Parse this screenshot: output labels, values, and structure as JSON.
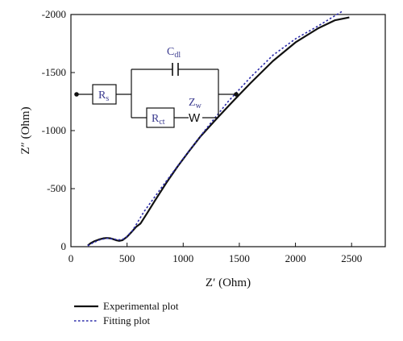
{
  "chart_data": {
    "type": "line",
    "xlabel": "Z′ (Ohm)",
    "ylabel": "Z″ (Ohm)",
    "xlim": [
      0,
      2800
    ],
    "ylim": [
      0,
      2000
    ],
    "x_ticks": [
      0,
      500,
      1000,
      1500,
      2000,
      2500
    ],
    "y_ticks": [
      0,
      500,
      1000,
      1500,
      2000
    ],
    "x_tick_labels": [
      "0",
      "500",
      "1000",
      "1500",
      "2000",
      "2500"
    ],
    "y_tick_labels": [
      "0",
      "-500",
      "-1000",
      "-1500",
      "-2000"
    ],
    "grid": false,
    "legend_position": "below",
    "series": [
      {
        "name": "Experimental plot",
        "color": "#111111",
        "style": "solid",
        "points": [
          [
            150,
            10
          ],
          [
            175,
            30
          ],
          [
            210,
            48
          ],
          [
            250,
            62
          ],
          [
            290,
            72
          ],
          [
            320,
            75
          ],
          [
            350,
            72
          ],
          [
            380,
            64
          ],
          [
            400,
            56
          ],
          [
            430,
            50
          ],
          [
            460,
            56
          ],
          [
            500,
            85
          ],
          [
            530,
            115
          ],
          [
            580,
            170
          ],
          [
            620,
            200
          ],
          [
            680,
            290
          ],
          [
            750,
            400
          ],
          [
            850,
            550
          ],
          [
            950,
            690
          ],
          [
            1050,
            820
          ],
          [
            1150,
            945
          ],
          [
            1300,
            1105
          ],
          [
            1450,
            1260
          ],
          [
            1600,
            1410
          ],
          [
            1800,
            1600
          ],
          [
            2000,
            1760
          ],
          [
            2200,
            1880
          ],
          [
            2350,
            1950
          ],
          [
            2480,
            1975
          ]
        ]
      },
      {
        "name": "Fitting plot",
        "color": "#2a2aa8",
        "style": "dotted",
        "points": [
          [
            150,
            8
          ],
          [
            200,
            35
          ],
          [
            260,
            60
          ],
          [
            320,
            72
          ],
          [
            380,
            66
          ],
          [
            430,
            58
          ],
          [
            480,
            70
          ],
          [
            550,
            140
          ],
          [
            650,
            300
          ],
          [
            800,
            500
          ],
          [
            1000,
            760
          ],
          [
            1200,
            1010
          ],
          [
            1400,
            1250
          ],
          [
            1600,
            1460
          ],
          [
            1800,
            1650
          ],
          [
            2000,
            1790
          ],
          [
            2200,
            1900
          ],
          [
            2420,
            2030
          ]
        ]
      }
    ]
  },
  "circuit": {
    "rs_main": "R",
    "rs_sub": "s",
    "cdl_main": "C",
    "cdl_sub": "dl",
    "rct_main": "R",
    "rct_sub": "ct",
    "zw_main": "Z",
    "zw_sub": "w",
    "w_label": "W"
  }
}
